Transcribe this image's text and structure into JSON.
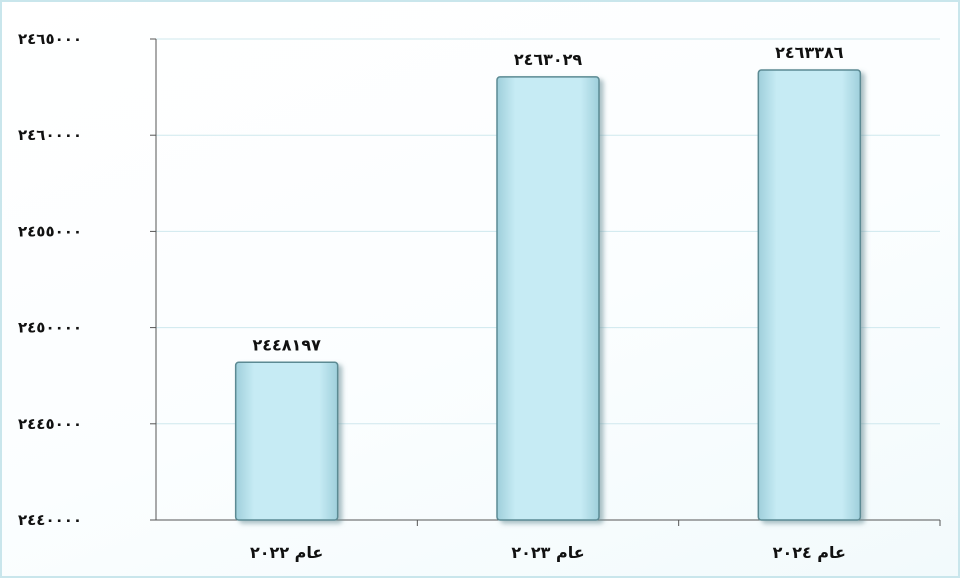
{
  "chart_data": {
    "type": "bar",
    "title": "",
    "xlabel": "",
    "ylabel": "",
    "categories": [
      "عام ٢٠٢٢",
      "عام ٢٠٢٣",
      "عام ٢٠٢٤"
    ],
    "values": [
      2448197,
      2463029,
      2463386
    ],
    "value_labels": [
      "٢٤٤٨١٩٧",
      "٢٤٦٣٠٢٩",
      "٢٤٦٣٣٨٦"
    ],
    "y_ticks": [
      2440000,
      2445000,
      2450000,
      2455000,
      2460000,
      2465000
    ],
    "y_tick_labels": [
      "٢٤٤٠٠٠٠",
      "٢٤٤٥٠٠٠",
      "٢٤٥٠٠٠٠",
      "٢٤٥٥٠٠٠",
      "٢٤٦٠٠٠٠",
      "٢٤٦٥٠٠٠"
    ],
    "ylim": [
      2440000,
      2465000
    ],
    "grid": true,
    "legend": "none",
    "bar_color": "#c2e8f2",
    "bar_edge_color": "#5b8a93"
  }
}
